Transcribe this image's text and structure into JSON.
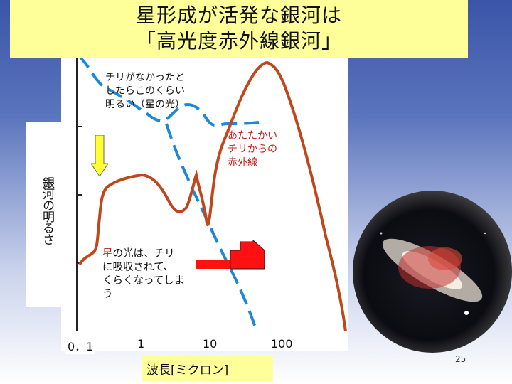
{
  "title": {
    "line1": "星形成が活発な銀河は",
    "line2": "「高光度赤外線銀河」"
  },
  "y_axis_label": "銀河の明るさ",
  "x_axis_label": "波長[ミクロン]",
  "x_ticks": [
    "0．1",
    "1",
    "10",
    "100"
  ],
  "annotations": {
    "dust_free": [
      "チリがなかったと",
      "したらこのくらい",
      "明るい（星の光）"
    ],
    "infrared": [
      "あたたかい",
      "チリからの",
      "赤外線"
    ],
    "star_light": {
      "highlight": "星",
      "text": [
        "の光は、チリ",
        "に吸収されて、",
        "くらくなってしま",
        "う"
      ]
    }
  },
  "page_number": "25",
  "colors": {
    "observed_curve": "#c0471c",
    "dust_free_curve": "#1e88d8",
    "arrow_down": "#ffff33",
    "arrow_up": "#ff1111",
    "title_bg": "#ffff99"
  },
  "chart_data": {
    "type": "line",
    "x_scale": "log",
    "xlim": [
      0.05,
      1000
    ],
    "series": [
      {
        "values_x": [
          0.1,
          0.2,
          0.4,
          0.8,
          1.2,
          2,
          3,
          5,
          6,
          7,
          8,
          9,
          10,
          30,
          80,
          120,
          200,
          500,
          800
        ],
        "values_y": [
          0.1,
          0.18,
          0.55,
          0.62,
          0.6,
          0.5,
          0.45,
          0.58,
          0.55,
          0.4,
          0.35,
          0.65,
          0.7,
          0.86,
          0.98,
          0.97,
          0.88,
          0.5,
          0.15
        ]
      },
      {
        "values_x": [
          0.08,
          0.12,
          0.2,
          0.3,
          0.5,
          1,
          2,
          4,
          7,
          12,
          30,
          60
        ],
        "values_y": [
          1.02,
          0.93,
          0.88,
          0.9,
          0.84,
          0.8,
          0.7,
          0.5,
          0.32,
          0.2,
          0.05,
          -0.05
        ]
      }
    ]
  }
}
